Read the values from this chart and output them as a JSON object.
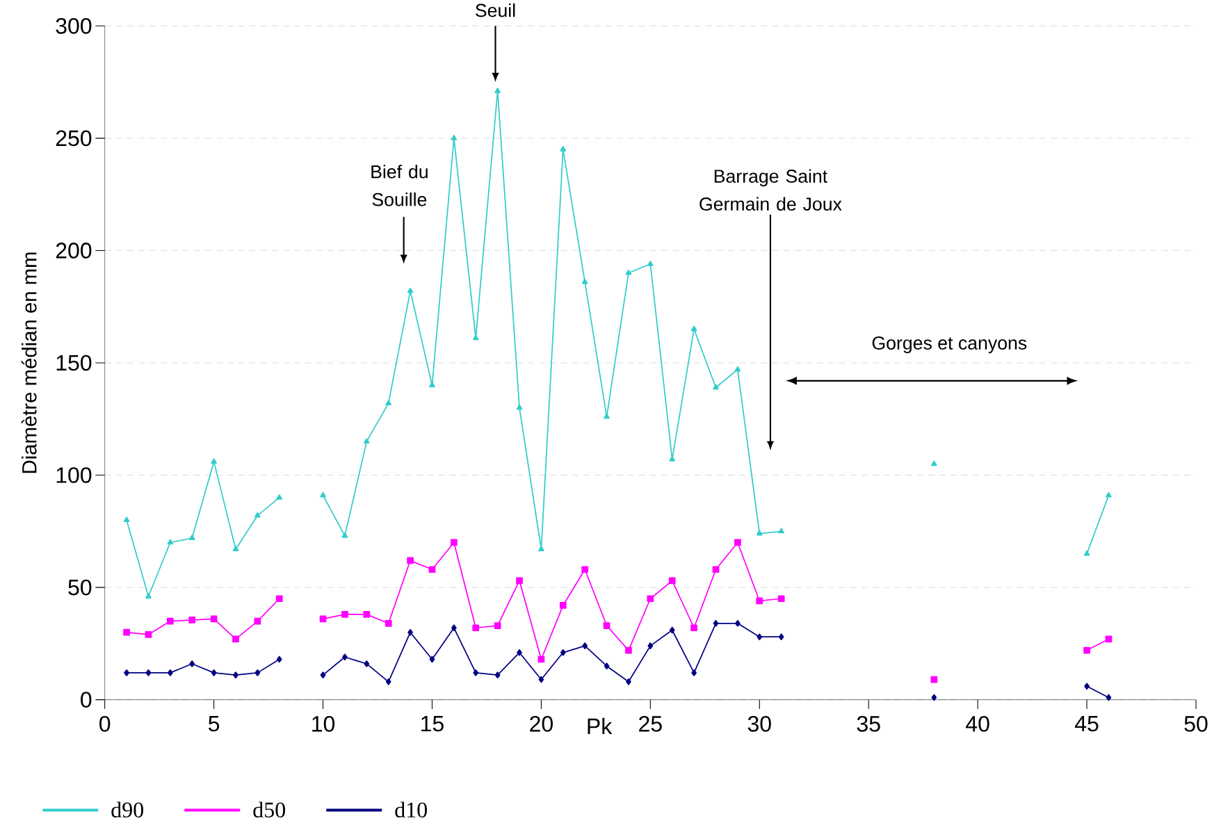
{
  "chart_data": {
    "type": "line",
    "xlabel": "Pk",
    "ylabel": "Diamètre médian en mm",
    "x": [
      1,
      2,
      3,
      4,
      5,
      6,
      7,
      8,
      9,
      10,
      11,
      12,
      13,
      14,
      15,
      16,
      17,
      18,
      19,
      20,
      21,
      22,
      23,
      24,
      25,
      26,
      27,
      28,
      29,
      30,
      31,
      32,
      33,
      34,
      35,
      36,
      37,
      38,
      39,
      40,
      41,
      42,
      43,
      44,
      45,
      46
    ],
    "series": [
      {
        "name": "d90",
        "color": "#33cccc",
        "marker": "triangle",
        "values": [
          80,
          46,
          70,
          72,
          106,
          67,
          82,
          90,
          null,
          91,
          73,
          115,
          132,
          182,
          140,
          250,
          161,
          271,
          130,
          67,
          245,
          186,
          126,
          190,
          194,
          107,
          165,
          139,
          147,
          74,
          75,
          null,
          null,
          null,
          null,
          null,
          null,
          105,
          null,
          null,
          null,
          null,
          null,
          null,
          65,
          91
        ]
      },
      {
        "name": "d50",
        "color": "#ff00ff",
        "marker": "square",
        "values": [
          30,
          29,
          35,
          35.5,
          36,
          27,
          35,
          45,
          null,
          36,
          38,
          38,
          34,
          62,
          58,
          70,
          32,
          33,
          53,
          18,
          42,
          58,
          33,
          22,
          45,
          53,
          32,
          58,
          70,
          44,
          45,
          null,
          null,
          null,
          null,
          null,
          null,
          9,
          null,
          null,
          null,
          null,
          null,
          null,
          22,
          27
        ]
      },
      {
        "name": "d10",
        "color": "#000080",
        "marker": "diamond",
        "values": [
          12,
          12,
          12,
          16,
          12,
          11,
          12,
          18,
          null,
          11,
          19,
          16,
          8,
          30,
          18,
          32,
          12,
          11,
          21,
          9,
          21,
          24,
          15,
          8,
          24,
          31,
          12,
          34,
          34,
          28,
          28,
          null,
          null,
          null,
          null,
          null,
          null,
          1,
          null,
          null,
          null,
          null,
          null,
          null,
          6,
          1
        ]
      }
    ],
    "xlim": [
      0,
      50
    ],
    "xticks": [
      0,
      5,
      10,
      15,
      20,
      25,
      30,
      35,
      40,
      45,
      50
    ],
    "ylim": [
      0,
      300
    ],
    "yticks": [
      0,
      50,
      100,
      150,
      200,
      250,
      300
    ],
    "grid": "y",
    "legend": "bottom left",
    "annotations": [
      "Seuil",
      "Bief du Souille",
      "Barrage Saint Germain de Joux",
      "Gorges et canyons"
    ]
  }
}
